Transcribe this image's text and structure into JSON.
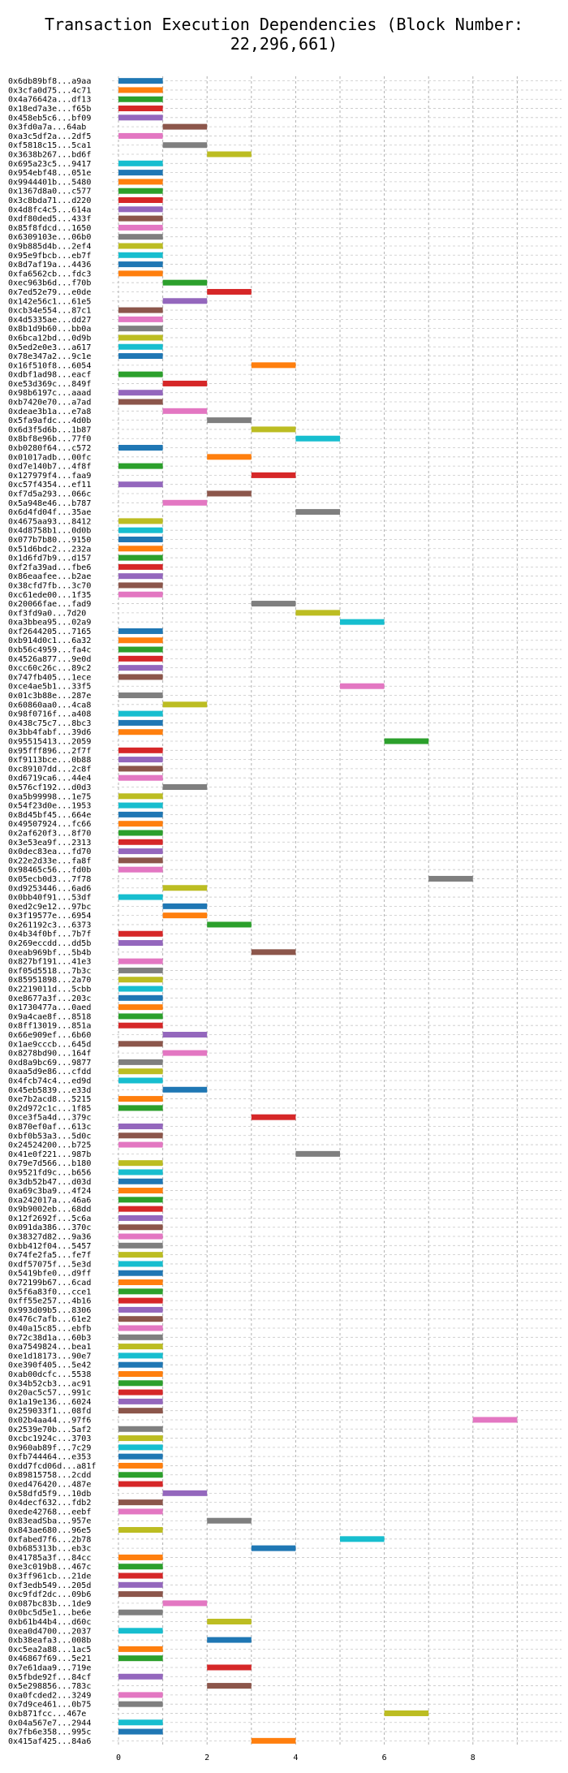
{
  "chart_data": {
    "type": "bar",
    "orientation": "horizontal-gantt",
    "title": "Transaction Execution Dependencies (Block Number: 22,296,661)",
    "xlabel": "",
    "ylabel": "",
    "xlim": [
      -0.3,
      9.7
    ],
    "x_ticks": [
      0,
      2,
      4,
      6,
      8
    ],
    "grid": true,
    "colors": [
      "#1f77b4",
      "#ff7f0e",
      "#2ca02c",
      "#d62728",
      "#9467bd",
      "#8c564b",
      "#e377c2",
      "#7f7f7f",
      "#bcbd22",
      "#17becf"
    ],
    "transactions": [
      {
        "label": "0x6db89bf8...a9aa",
        "start": 0
      },
      {
        "label": "0x3cfa0d75...4c71",
        "start": 0
      },
      {
        "label": "0x4a76642a...df13",
        "start": 0
      },
      {
        "label": "0x18ed7a3e...f65b",
        "start": 0
      },
      {
        "label": "0x458eb5c6...bf09",
        "start": 0
      },
      {
        "label": "0x3fd0a7a...64ab",
        "start": 1
      },
      {
        "label": "0xa3c5df2a...2df5",
        "start": 0
      },
      {
        "label": "0xf5818c15...5ca1",
        "start": 1
      },
      {
        "label": "0x3638b267...bd6f",
        "start": 2
      },
      {
        "label": "0x695a23c5...9417",
        "start": 0
      },
      {
        "label": "0x954ebf48...051e",
        "start": 0
      },
      {
        "label": "0x9944401b...5480",
        "start": 0
      },
      {
        "label": "0x1367d8a0...c577",
        "start": 0
      },
      {
        "label": "0x3c8bda71...d220",
        "start": 0
      },
      {
        "label": "0x4d8fc4c5...614a",
        "start": 0
      },
      {
        "label": "0xdf80ded5...433f",
        "start": 0
      },
      {
        "label": "0x85f8fdcd...1650",
        "start": 0
      },
      {
        "label": "0x6309103e...06b0",
        "start": 0
      },
      {
        "label": "0x9b885d4b...2ef4",
        "start": 0
      },
      {
        "label": "0x95e9fbcb...eb7f",
        "start": 0
      },
      {
        "label": "0x8d7af19a...4436",
        "start": 0
      },
      {
        "label": "0xfa6562cb...fdc3",
        "start": 0
      },
      {
        "label": "0xec963b6d...f70b",
        "start": 1
      },
      {
        "label": "0x7ed52e79...e0de",
        "start": 2
      },
      {
        "label": "0x142e56c1...61e5",
        "start": 1
      },
      {
        "label": "0xcb34e554...87c1",
        "start": 0
      },
      {
        "label": "0x4d5335ae...dd27",
        "start": 0
      },
      {
        "label": "0x8b1d9b60...bb0a",
        "start": 0
      },
      {
        "label": "0x6bca12bd...0d9b",
        "start": 0
      },
      {
        "label": "0x5ed2e0e3...a617",
        "start": 0
      },
      {
        "label": "0x78e347a2...9c1e",
        "start": 0
      },
      {
        "label": "0x16f510f8...6054",
        "start": 3
      },
      {
        "label": "0xdbf1ad98...eacf",
        "start": 0
      },
      {
        "label": "0xe53d369c...849f",
        "start": 1
      },
      {
        "label": "0x98b6197c...aaad",
        "start": 0
      },
      {
        "label": "0xb7420e70...a7ad",
        "start": 0
      },
      {
        "label": "0xdeae3b1a...e7a8",
        "start": 1
      },
      {
        "label": "0x5fa9afdc...4d0b",
        "start": 2
      },
      {
        "label": "0x6d3f5d6b...1b87",
        "start": 3
      },
      {
        "label": "0x8bf8e96b...77f0",
        "start": 4
      },
      {
        "label": "0xb0280f64...c572",
        "start": 0
      },
      {
        "label": "0x01017adb...00fc",
        "start": 2
      },
      {
        "label": "0xd7e140b7...4f8f",
        "start": 0
      },
      {
        "label": "0x127979f4...faa9",
        "start": 3
      },
      {
        "label": "0xc57f4354...ef11",
        "start": 0
      },
      {
        "label": "0xf7d5a293...066c",
        "start": 2
      },
      {
        "label": "0x5a948e46...b787",
        "start": 1
      },
      {
        "label": "0x6d4fd04f...35ae",
        "start": 4
      },
      {
        "label": "0x4675aa93...8412",
        "start": 0
      },
      {
        "label": "0x4d8758b1...0d0b",
        "start": 0
      },
      {
        "label": "0x077b7b80...9150",
        "start": 0
      },
      {
        "label": "0x51d6bdc2...232a",
        "start": 0
      },
      {
        "label": "0x1d6fd7b9...d157",
        "start": 0
      },
      {
        "label": "0xf2fa39ad...fbe6",
        "start": 0
      },
      {
        "label": "0x86eaafee...b2ae",
        "start": 0
      },
      {
        "label": "0x38cfd7fb...3c70",
        "start": 0
      },
      {
        "label": "0xc61ede00...1f35",
        "start": 0
      },
      {
        "label": "0x20066fae...fad9",
        "start": 3
      },
      {
        "label": "0xf3fd9a0...7d20",
        "start": 4
      },
      {
        "label": "0xa3bbea95...02a9",
        "start": 5
      },
      {
        "label": "0xf2644205...7165",
        "start": 0
      },
      {
        "label": "0xb914d0c1...6a32",
        "start": 0
      },
      {
        "label": "0xb56c4959...fa4c",
        "start": 0
      },
      {
        "label": "0x4526a877...9e0d",
        "start": 0
      },
      {
        "label": "0xcc60c26c...89c2",
        "start": 0
      },
      {
        "label": "0x747fb405...1ece",
        "start": 0
      },
      {
        "label": "0xce4ae5b1...33f5",
        "start": 5
      },
      {
        "label": "0x01c3b88e...287e",
        "start": 0
      },
      {
        "label": "0x60860aa0...4ca8",
        "start": 1
      },
      {
        "label": "0x98f0716f...a408",
        "start": 0
      },
      {
        "label": "0x438c75c7...8bc3",
        "start": 0
      },
      {
        "label": "0x3bb4fabf...39d6",
        "start": 0
      },
      {
        "label": "0x95515413...2059",
        "start": 6
      },
      {
        "label": "0x95fff896...2f7f",
        "start": 0
      },
      {
        "label": "0xf9113bce...0b88",
        "start": 0
      },
      {
        "label": "0xc89107dd...2c8f",
        "start": 0
      },
      {
        "label": "0xd6719ca6...44e4",
        "start": 0
      },
      {
        "label": "0x576cf192...d0d3",
        "start": 1
      },
      {
        "label": "0xa5b99998...1e75",
        "start": 0
      },
      {
        "label": "0x54f23d0e...1953",
        "start": 0
      },
      {
        "label": "0x8d45bf45...664e",
        "start": 0
      },
      {
        "label": "0x49507924...fc66",
        "start": 0
      },
      {
        "label": "0x2af620f3...8f70",
        "start": 0
      },
      {
        "label": "0x3e53ea9f...2313",
        "start": 0
      },
      {
        "label": "0x0dec83ea...fd70",
        "start": 0
      },
      {
        "label": "0x22e2d33e...fa8f",
        "start": 0
      },
      {
        "label": "0x98465c56...fd0b",
        "start": 0
      },
      {
        "label": "0x05ecb0d3...7f78",
        "start": 7
      },
      {
        "label": "0xd9253446...6ad6",
        "start": 1
      },
      {
        "label": "0x0bb40f91...53df",
        "start": 0
      },
      {
        "label": "0xed2c9e12...97bc",
        "start": 1
      },
      {
        "label": "0x3f19577e...6954",
        "start": 1
      },
      {
        "label": "0x261192c3...6373",
        "start": 2
      },
      {
        "label": "0x4b34f0bf...7b7f",
        "start": 0
      },
      {
        "label": "0x269eccdd...dd5b",
        "start": 0
      },
      {
        "label": "0xeab969bf...5b4b",
        "start": 3
      },
      {
        "label": "0x827bf191...41e3",
        "start": 0
      },
      {
        "label": "0xf05d5518...7b3c",
        "start": 0
      },
      {
        "label": "0x85951898...2a70",
        "start": 0
      },
      {
        "label": "0x2219011d...5cbb",
        "start": 0
      },
      {
        "label": "0xe8677a3f...203c",
        "start": 0
      },
      {
        "label": "0x1730477a...0aed",
        "start": 0
      },
      {
        "label": "0x9a4cae8f...8518",
        "start": 0
      },
      {
        "label": "0x8ff13019...851a",
        "start": 0
      },
      {
        "label": "0x66e909ef...6b60",
        "start": 1
      },
      {
        "label": "0x1ae9cccb...645d",
        "start": 0
      },
      {
        "label": "0x8278bd90...164f",
        "start": 1
      },
      {
        "label": "0xd8a9bc69...9877",
        "start": 0
      },
      {
        "label": "0xaa5d9e86...cfdd",
        "start": 0
      },
      {
        "label": "0x4fcb74c4...ed9d",
        "start": 0
      },
      {
        "label": "0x45eb5839...e33d",
        "start": 1
      },
      {
        "label": "0xe7b2acd8...5215",
        "start": 0
      },
      {
        "label": "0x2d972c1c...1f85",
        "start": 0
      },
      {
        "label": "0xce3f5a4d...379c",
        "start": 3
      },
      {
        "label": "0x870ef0af...613c",
        "start": 0
      },
      {
        "label": "0xbf0b53a3...5d0c",
        "start": 0
      },
      {
        "label": "0x24524200...b725",
        "start": 0
      },
      {
        "label": "0x41e0f221...987b",
        "start": 4
      },
      {
        "label": "0x79e7d566...b180",
        "start": 0
      },
      {
        "label": "0x9521fd9c...b656",
        "start": 0
      },
      {
        "label": "0x3db52b47...d03d",
        "start": 0
      },
      {
        "label": "0xa69c3ba9...4f24",
        "start": 0
      },
      {
        "label": "0xa242017a...46a6",
        "start": 0
      },
      {
        "label": "0x9b9002eb...68dd",
        "start": 0
      },
      {
        "label": "0x12f2692f...5c6a",
        "start": 0
      },
      {
        "label": "0x091da386...370c",
        "start": 0
      },
      {
        "label": "0x38327d82...9a36",
        "start": 0
      },
      {
        "label": "0xbb412f04...5457",
        "start": 0
      },
      {
        "label": "0x74fe2fa5...fe7f",
        "start": 0
      },
      {
        "label": "0xdf57075f...5e3d",
        "start": 0
      },
      {
        "label": "0x5419bfe0...d9ff",
        "start": 0
      },
      {
        "label": "0x72199b67...6cad",
        "start": 0
      },
      {
        "label": "0x5f6a83f0...cce1",
        "start": 0
      },
      {
        "label": "0xff55e257...4b16",
        "start": 0
      },
      {
        "label": "0x993d09b5...8306",
        "start": 0
      },
      {
        "label": "0x476c7afb...61e2",
        "start": 0
      },
      {
        "label": "0x40a15c85...ebfb",
        "start": 0
      },
      {
        "label": "0x72c38d1a...60b3",
        "start": 0
      },
      {
        "label": "0xa7549824...bea1",
        "start": 0
      },
      {
        "label": "0xe1d18173...90e7",
        "start": 0
      },
      {
        "label": "0xe390f405...5e42",
        "start": 0
      },
      {
        "label": "0xab00dcfc...5538",
        "start": 0
      },
      {
        "label": "0x34b52cb3...ac91",
        "start": 0
      },
      {
        "label": "0x20ac5c57...991c",
        "start": 0
      },
      {
        "label": "0x1a19e136...6024",
        "start": 0
      },
      {
        "label": "0x259033f1...08fd",
        "start": 0
      },
      {
        "label": "0x02b4aa44...97f6",
        "start": 8
      },
      {
        "label": "0x2539e70b...5af2",
        "start": 0
      },
      {
        "label": "0xcbc1924c...3703",
        "start": 0
      },
      {
        "label": "0x960ab89f...7c29",
        "start": 0
      },
      {
        "label": "0xfb744464...e353",
        "start": 0
      },
      {
        "label": "0xdd7fcd06d...a81f",
        "start": 0
      },
      {
        "label": "0x89815758...2cdd",
        "start": 0
      },
      {
        "label": "0xed476420...487e",
        "start": 0
      },
      {
        "label": "0x58dfd5f9...10db",
        "start": 1
      },
      {
        "label": "0x4decf632...fdb2",
        "start": 0
      },
      {
        "label": "0xede42768...eebf",
        "start": 0
      },
      {
        "label": "0x83eadSba...957e",
        "start": 2
      },
      {
        "label": "0x843ae680...96e5",
        "start": 0
      },
      {
        "label": "0xfabed7f6...2b78",
        "start": 5
      },
      {
        "label": "0xb685313b...eb3c",
        "start": 3
      },
      {
        "label": "0x41785a3f...84cc",
        "start": 0
      },
      {
        "label": "0xe3c019b8...467c",
        "start": 0
      },
      {
        "label": "0x3ff961cb...21de",
        "start": 0
      },
      {
        "label": "0xf3edb549...205d",
        "start": 0
      },
      {
        "label": "0xc9fdf2dc...09b6",
        "start": 0
      },
      {
        "label": "0x087bc83b...1de9",
        "start": 1
      },
      {
        "label": "0x0bc5d5e1...be6e",
        "start": 0
      },
      {
        "label": "0xb61b44b4...d60c",
        "start": 2
      },
      {
        "label": "0xea0d4700...2037",
        "start": 0
      },
      {
        "label": "0xb38eafa3...008b",
        "start": 2
      },
      {
        "label": "0xc5ea2a88...1ac5",
        "start": 0
      },
      {
        "label": "0x46867f69...5e21",
        "start": 0
      },
      {
        "label": "0x7e61daa9...719e",
        "start": 2
      },
      {
        "label": "0x5fbde92f...84cf",
        "start": 0
      },
      {
        "label": "0x5e298856...783c",
        "start": 2
      },
      {
        "label": "0xa0fcded2...3249",
        "start": 0
      },
      {
        "label": "0x7d9ce461...0b75",
        "start": 0
      },
      {
        "label": "0xb871fcc...467e",
        "start": 6
      },
      {
        "label": "0x04a567e7...2944",
        "start": 0
      },
      {
        "label": "0x7fb6e358...995c",
        "start": 0
      },
      {
        "label": "0x415af425...84a6",
        "start": 3
      }
    ],
    "duration": 1
  }
}
